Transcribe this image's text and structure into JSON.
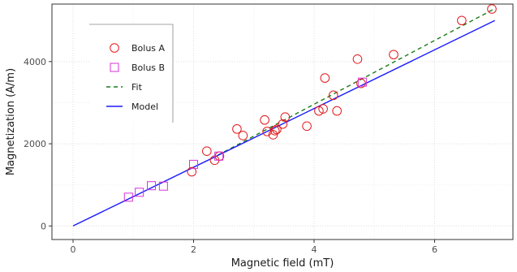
{
  "chart_data": {
    "type": "scatter",
    "title": "",
    "xlabel": "Magnetic field (mT)",
    "ylabel": "Magnetization (A/m)",
    "xlim": [
      -0.35,
      7.3
    ],
    "ylim": [
      -330,
      5400
    ],
    "x_ticks": [
      0,
      2,
      4,
      6
    ],
    "x_tick_labels": [
      "0",
      "2",
      "4",
      "6"
    ],
    "y_ticks": [
      0,
      2000,
      4000
    ],
    "y_tick_labels": [
      "0",
      "2000",
      "4000"
    ],
    "grid": true,
    "legend_position": "top-left",
    "series": [
      {
        "name": "Bolus A",
        "kind": "scatter",
        "marker": "circle",
        "color": "#e41a1c",
        "points": [
          [
            1.97,
            1320
          ],
          [
            2.22,
            1820
          ],
          [
            2.35,
            1600
          ],
          [
            2.43,
            1700
          ],
          [
            2.72,
            2360
          ],
          [
            2.82,
            2200
          ],
          [
            3.18,
            2580
          ],
          [
            3.22,
            2300
          ],
          [
            3.32,
            2220
          ],
          [
            3.35,
            2320
          ],
          [
            3.38,
            2350
          ],
          [
            3.48,
            2480
          ],
          [
            3.52,
            2650
          ],
          [
            3.88,
            2430
          ],
          [
            4.08,
            2800
          ],
          [
            4.15,
            2850
          ],
          [
            4.18,
            3600
          ],
          [
            4.32,
            3180
          ],
          [
            4.38,
            2800
          ],
          [
            4.72,
            4060
          ],
          [
            4.78,
            3470
          ],
          [
            5.32,
            4170
          ],
          [
            6.45,
            5000
          ],
          [
            6.95,
            5280
          ]
        ]
      },
      {
        "name": "Bolus B",
        "kind": "scatter",
        "marker": "square",
        "color": "#d633d6",
        "points": [
          [
            0.92,
            700
          ],
          [
            1.1,
            820
          ],
          [
            1.3,
            980
          ],
          [
            1.5,
            970
          ],
          [
            2.0,
            1500
          ],
          [
            2.42,
            1700
          ],
          [
            4.8,
            3500
          ]
        ]
      },
      {
        "name": "Fit",
        "kind": "line",
        "dash": "5,4",
        "color": "#1b7c1b",
        "points": [
          [
            2.4,
            1720
          ],
          [
            7.0,
            5290
          ]
        ]
      },
      {
        "name": "Model",
        "kind": "line",
        "dash": "",
        "color": "#1a1aff",
        "points": [
          [
            0,
            0
          ],
          [
            7.0,
            5000
          ]
        ]
      }
    ]
  }
}
